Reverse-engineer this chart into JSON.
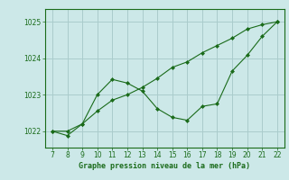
{
  "x": [
    7,
    8,
    9,
    10,
    11,
    12,
    13,
    14,
    15,
    16,
    17,
    18,
    19,
    20,
    21,
    22
  ],
  "line1": [
    1022.0,
    1022.0,
    1022.2,
    1022.55,
    1022.85,
    1023.0,
    1023.2,
    1023.45,
    1023.75,
    1023.9,
    1024.15,
    1024.35,
    1024.55,
    1024.8,
    1024.92,
    1025.0
  ],
  "line2": [
    1022.0,
    1021.88,
    1022.2,
    1023.0,
    1023.42,
    1023.32,
    1023.1,
    1022.62,
    1022.38,
    1022.3,
    1022.68,
    1022.75,
    1023.65,
    1024.08,
    1024.6,
    1025.0
  ],
  "line_color": "#1a6b1a",
  "bg_color": "#cce8e8",
  "grid_color": "#aacccc",
  "xlabel": "Graphe pression niveau de la mer (hPa)",
  "xlabel_color": "#1a6b1a",
  "ylabel_ticks": [
    1022,
    1023,
    1024,
    1025
  ],
  "xticks": [
    7,
    8,
    9,
    10,
    11,
    12,
    13,
    14,
    15,
    16,
    17,
    18,
    19,
    20,
    21,
    22
  ],
  "ylim": [
    1021.55,
    1025.35
  ],
  "xlim": [
    6.5,
    22.5
  ]
}
